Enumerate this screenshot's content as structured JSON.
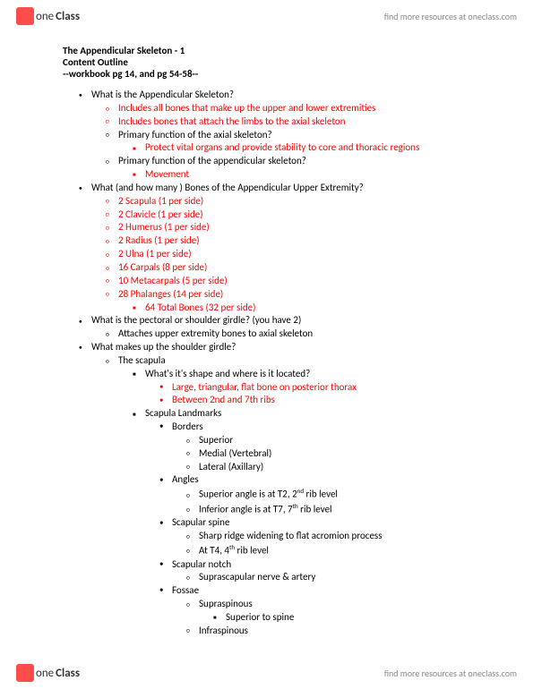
{
  "brand": {
    "logo_one": "one",
    "logo_class": "Class",
    "find_more": "find more resources at oneclass.com"
  },
  "doc": {
    "title": "The Appendicular Skeleton - 1",
    "subtitle": "Content Outline",
    "ref": "--workbook pg 14, and pg 54-58--"
  },
  "t": {
    "q1": "What is the Appendicular Skeleton?",
    "q1a": "Includes all bones that make up the upper and lower extremities",
    "q1b": "Includes bones that attach the limbs to the axial skeleton",
    "q1c": "Primary function of the axial skeleton?",
    "q1c1": "Protect vital organs and provide stability to core and thoracic regions",
    "q1d": "Primary function of the appendicular skeleton?",
    "q1d1": "Movement",
    "q2": "What (and how many ) Bones of the Appendicular Upper Extremity?",
    "b_scapula": "2 Scapula (1 per side)",
    "b_clavicle": "2 Clavicle (1 per side)",
    "b_humerus": "2 Humerus (1 per side)",
    "b_radius": "2 Radius (1 per side)",
    "b_ulna": "2 Ulna (1 per side)",
    "b_carpals": "16 Carpals (8 per side)",
    "b_metacarpals": "10 Metacarpals (5 per side)",
    "b_phalanges": "28 Phalanges (14 per side)",
    "b_total": "64 Total Bones (32 per side)",
    "q3": "What is the pectoral or shoulder girdle? (you have 2)",
    "q3a": "Attaches upper extremity bones to axial skeleton",
    "q4": "What makes up the shoulder girdle?",
    "q4a": "The scapula",
    "q4a1": "What's it's shape and where is it located?",
    "q4a1a": "Large, triangular, flat bone on posterior thorax",
    "q4a1b": "Between 2nd and 7th ribs",
    "q4a2": "Scapula Landmarks",
    "borders": "Borders",
    "sup": "Superior",
    "med": "Medial (Vertebral)",
    "lat": "Lateral (Axillary)",
    "angles": "Angles",
    "ang_sup_pre": "Superior angle is at T2, 2",
    "ang_sup_suf": " rib level",
    "ang_inf_pre": "Inferior angle is at  T7, 7",
    "ang_inf_suf": " rib level",
    "spine": "Scapular spine",
    "spine_a": "Sharp ridge widening to flat acromion process",
    "spine_b_pre": "At T4, 4",
    "spine_b_suf": " rib level",
    "notch": "Scapular notch",
    "notch_a": "Suprascapular nerve & artery",
    "fossae": "Fossae",
    "fossae_a": "Supraspinous",
    "fossae_a1": "Superior to spine",
    "fossae_b": "Infraspinous"
  },
  "ord": {
    "nd": "nd",
    "th": "th"
  }
}
